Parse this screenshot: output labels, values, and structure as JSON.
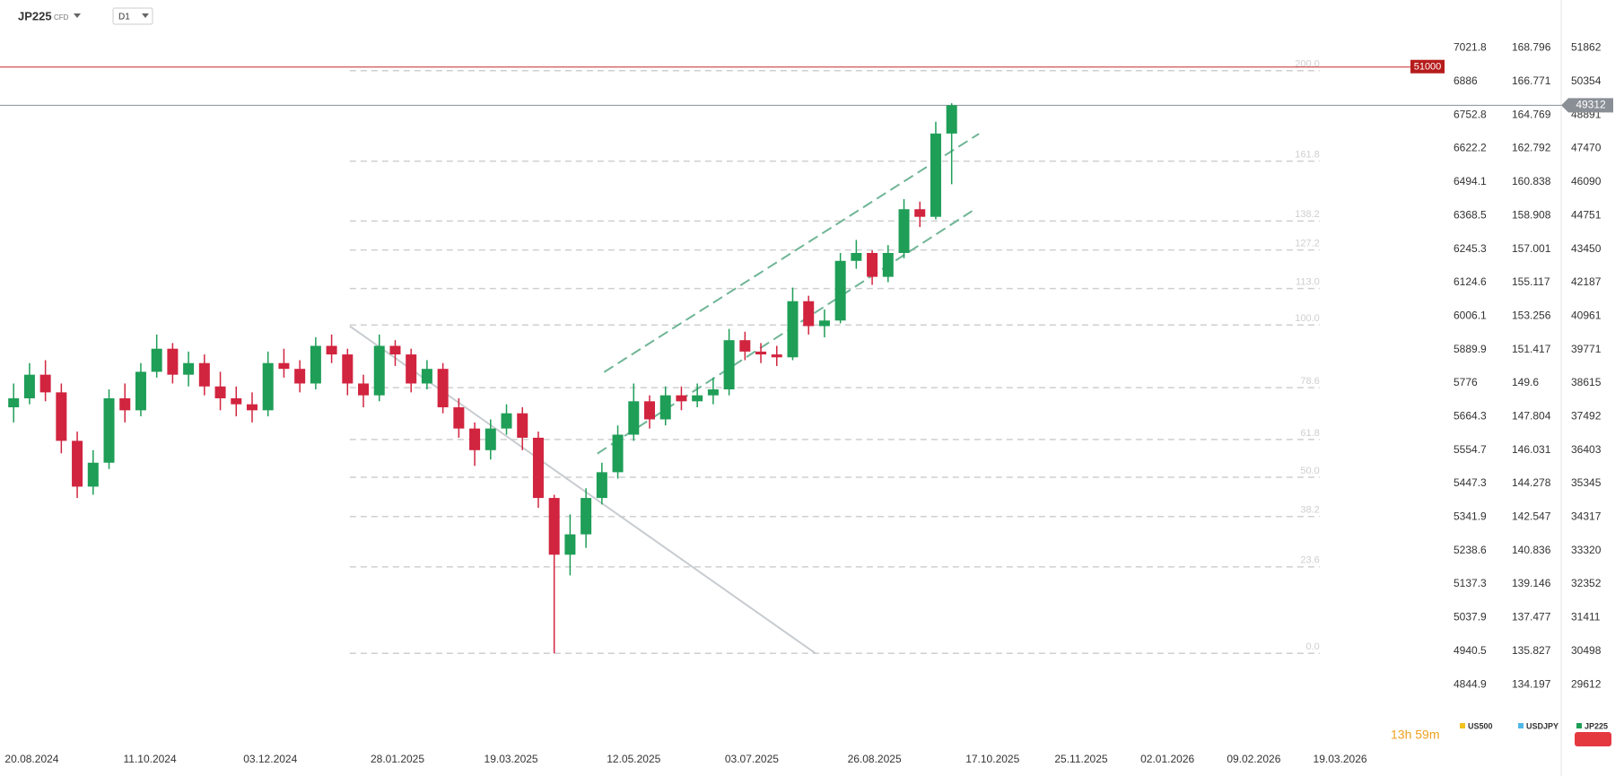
{
  "header": {
    "symbol": "JP225",
    "instrument": "CFD",
    "interval": "D1",
    "countdown": "13h 59m"
  },
  "chart_data": {
    "type": "candlestick",
    "log_scale": true,
    "ylim": [
      28200,
      54100
    ],
    "yticks": [
      51862,
      50354,
      48891,
      47470,
      46090,
      44751,
      43450,
      42187,
      40961,
      39771,
      38615,
      37492,
      36403,
      35345,
      34317,
      33320,
      32352,
      31411,
      30498,
      29612
    ],
    "compare_axes": [
      {
        "name": "US500",
        "color": "#f2c21b",
        "ticks": [
          7021.8,
          6886.0,
          6752.8,
          6622.2,
          6494.1,
          6368.5,
          6245.3,
          6124.6,
          6006.1,
          5889.9,
          5776.0,
          5664.3,
          5554.7,
          5447.3,
          5341.9,
          5238.6,
          5137.3,
          5037.9,
          4940.5,
          4844.9
        ]
      },
      {
        "name": "USDJPY",
        "color": "#4fb8e8",
        "ticks": [
          168.796,
          166.771,
          164.769,
          162.792,
          160.838,
          158.908,
          157.001,
          155.117,
          153.256,
          151.417,
          149.6,
          147.804,
          146.031,
          144.278,
          142.547,
          140.836,
          139.146,
          137.477,
          135.827,
          134.197
        ]
      }
    ],
    "series_name": "JP225",
    "series_color": "#1e9e57",
    "up_color": "#1e9e57",
    "down_color": "#d1243f",
    "xlim": [
      "06.08.2024",
      "04.05.2026"
    ],
    "xticks": [
      "20.08.2024",
      "11.10.2024",
      "03.12.2024",
      "28.01.2025",
      "19.03.2025",
      "12.05.2025",
      "03.07.2025",
      "26.08.2025",
      "17.10.2025",
      "25.11.2025",
      "02.01.2026",
      "09.02.2026",
      "19.03.2026"
    ],
    "x": [
      "12.08.2024",
      "19.08.2024",
      "26.08.2024",
      "02.09.2024",
      "09.09.2024",
      "16.09.2024",
      "23.09.2024",
      "30.09.2024",
      "07.10.2024",
      "14.10.2024",
      "21.10.2024",
      "28.10.2024",
      "04.11.2024",
      "11.11.2024",
      "18.11.2024",
      "25.11.2024",
      "02.12.2024",
      "09.12.2024",
      "16.12.2024",
      "23.12.2024",
      "30.12.2024",
      "06.01.2025",
      "13.01.2025",
      "20.01.2025",
      "27.01.2025",
      "03.02.2025",
      "10.02.2025",
      "17.02.2025",
      "24.02.2025",
      "03.03.2025",
      "10.03.2025",
      "17.03.2025",
      "24.03.2025",
      "31.03.2025",
      "07.04.2025",
      "14.04.2025",
      "21.04.2025",
      "28.04.2025",
      "05.05.2025",
      "12.05.2025",
      "19.05.2025",
      "26.05.2025",
      "02.06.2025",
      "09.06.2025",
      "16.06.2025",
      "23.06.2025",
      "30.06.2025",
      "07.07.2025",
      "14.07.2025",
      "21.07.2025",
      "28.07.2025",
      "04.08.2025",
      "11.08.2025",
      "18.08.2025",
      "25.08.2025",
      "01.09.2025",
      "08.09.2025",
      "15.09.2025",
      "22.09.2025",
      "29.09.2025"
    ],
    "open": [
      37800,
      38100,
      38900,
      38300,
      36700,
      35250,
      36000,
      38100,
      37700,
      39000,
      39800,
      38900,
      39300,
      38500,
      38100,
      37900,
      37700,
      39300,
      39100,
      38600,
      39900,
      39600,
      38600,
      38200,
      39900,
      39600,
      38600,
      39100,
      37800,
      37100,
      36400,
      37100,
      37600,
      36800,
      34900,
      33200,
      33800,
      34900,
      35700,
      36900,
      38000,
      37400,
      38200,
      38000,
      38200,
      38400,
      40100,
      39700,
      39600,
      39500,
      41500,
      40600,
      40800,
      43000,
      43300,
      42400,
      43300,
      45000,
      44700,
      48100
    ],
    "high": [
      38600,
      39300,
      39400,
      38600,
      37000,
      36400,
      38400,
      38600,
      39300,
      40300,
      40000,
      39700,
      39600,
      39000,
      38500,
      38300,
      39700,
      39800,
      39400,
      40200,
      40300,
      39800,
      38900,
      40300,
      40100,
      39800,
      39400,
      39300,
      38100,
      37300,
      37400,
      37900,
      37800,
      37000,
      35000,
      34400,
      35200,
      36000,
      37200,
      38600,
      38200,
      38500,
      38500,
      38600,
      38800,
      40500,
      40400,
      40000,
      39900,
      42000,
      41700,
      41200,
      43300,
      43800,
      43400,
      43600,
      45400,
      45300,
      48600,
      49400
    ],
    "low": [
      37300,
      37900,
      38000,
      36300,
      34900,
      35000,
      35800,
      37300,
      37500,
      38800,
      38600,
      38500,
      38200,
      37700,
      37500,
      37300,
      37500,
      38800,
      38300,
      38400,
      39300,
      38200,
      37800,
      38000,
      39200,
      38300,
      38400,
      37600,
      36800,
      35900,
      36100,
      36900,
      36400,
      34600,
      30440,
      32600,
      33400,
      34700,
      35500,
      36700,
      37100,
      37200,
      37700,
      37800,
      37900,
      38200,
      39400,
      39300,
      39200,
      39400,
      40300,
      40200,
      40700,
      42700,
      42100,
      42200,
      43100,
      44300,
      44600,
      46000
    ],
    "close": [
      38100,
      38900,
      38300,
      36700,
      35250,
      36000,
      38100,
      37700,
      39000,
      39800,
      38900,
      39300,
      38500,
      38100,
      37900,
      37700,
      39300,
      39100,
      38600,
      39900,
      39600,
      38600,
      38200,
      39900,
      39600,
      38600,
      39100,
      37800,
      37100,
      36400,
      37100,
      37600,
      36800,
      34900,
      33200,
      33800,
      34900,
      35700,
      36900,
      38000,
      37400,
      38200,
      38000,
      38200,
      38400,
      40100,
      39700,
      39600,
      39500,
      41500,
      40600,
      40800,
      43000,
      43300,
      42400,
      43300,
      45000,
      44700,
      48100,
      49312
    ],
    "price_levels": [
      {
        "value": 51000,
        "color": "#c62828"
      },
      {
        "value": 49312,
        "color": "#8a8f96"
      }
    ],
    "fib": {
      "low": 30440,
      "high": 40640,
      "start": "07.01.2025",
      "end": "10.03.2026",
      "color": "#cfcfcf",
      "levels": [
        {
          "value": 200,
          "label": "200.0"
        },
        161.8,
        138.2,
        127.2,
        {
          "value": 113,
          "label": "113.0"
        },
        {
          "value": 100,
          "label": "100.0"
        },
        78.6,
        61.8,
        {
          "value": 50,
          "label": "50.0"
        },
        38.2,
        23.6,
        {
          "value": 0,
          "label": "0.0"
        }
      ]
    },
    "trend_lines": [
      {
        "color": "#6fb596",
        "dashed": true,
        "points": [
          {
            "x": "29.04.2025",
            "y": 38990
          },
          {
            "x": "11.10.2025",
            "y": 48090
          }
        ]
      },
      {
        "color": "#6fb596",
        "dashed": true,
        "points": [
          {
            "x": "26.04.2025",
            "y": 36290
          },
          {
            "x": "08.10.2025",
            "y": 44930
          }
        ]
      },
      {
        "color": "#c8ccd0",
        "dashed": false,
        "points": [
          {
            "x": "07.01.2025",
            "y": 40600
          },
          {
            "x": "31.07.2025",
            "y": 30440
          }
        ]
      }
    ]
  }
}
